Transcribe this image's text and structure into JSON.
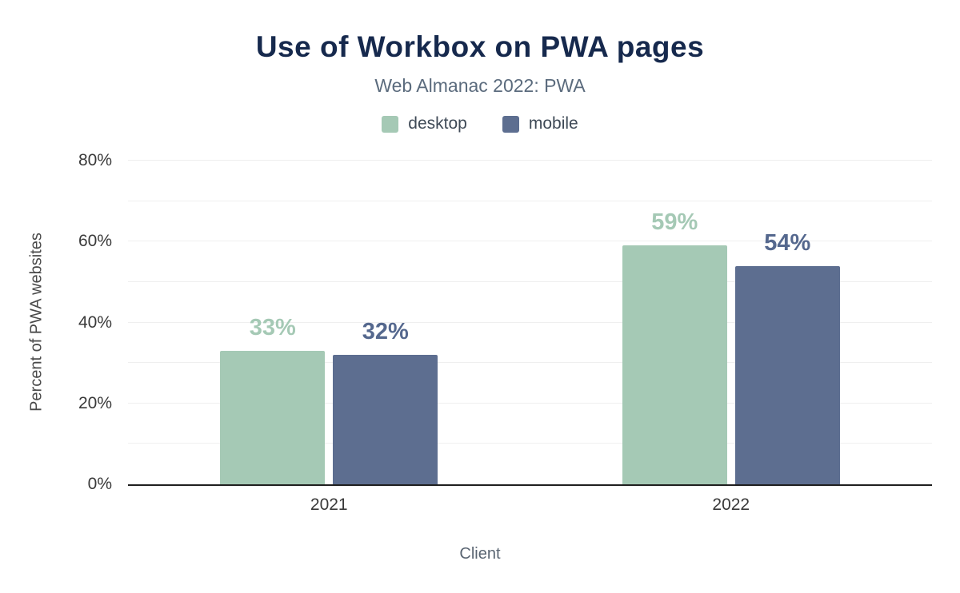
{
  "title": "Use of Workbox on PWA pages",
  "subtitle": "Web Almanac 2022: PWA",
  "colors": {
    "title": "#16294d",
    "desktop": "#a5c9b5",
    "mobile": "#5d6e90",
    "desktop_label": "#a5c9b5",
    "mobile_label": "#55688e"
  },
  "chart_data": {
    "type": "bar",
    "categories": [
      "2021",
      "2022"
    ],
    "series": [
      {
        "name": "desktop",
        "values": [
          33,
          59
        ],
        "labels": [
          "33%",
          "59%"
        ],
        "color": "#a5c9b5",
        "label_color": "#a5c9b5"
      },
      {
        "name": "mobile",
        "values": [
          32,
          54
        ],
        "labels": [
          "32%",
          "54%"
        ],
        "color": "#5d6e90",
        "label_color": "#55688e"
      }
    ],
    "title": "Use of Workbox on PWA pages",
    "subtitle": "Web Almanac 2022: PWA",
    "xlabel": "Client",
    "ylabel": "Percent of PWA websites",
    "ylim": [
      0,
      80
    ],
    "grid_step": 10,
    "yticks": [
      "0%",
      "20%",
      "40%",
      "60%",
      "80%"
    ],
    "grid": true,
    "legend_position": "top"
  }
}
